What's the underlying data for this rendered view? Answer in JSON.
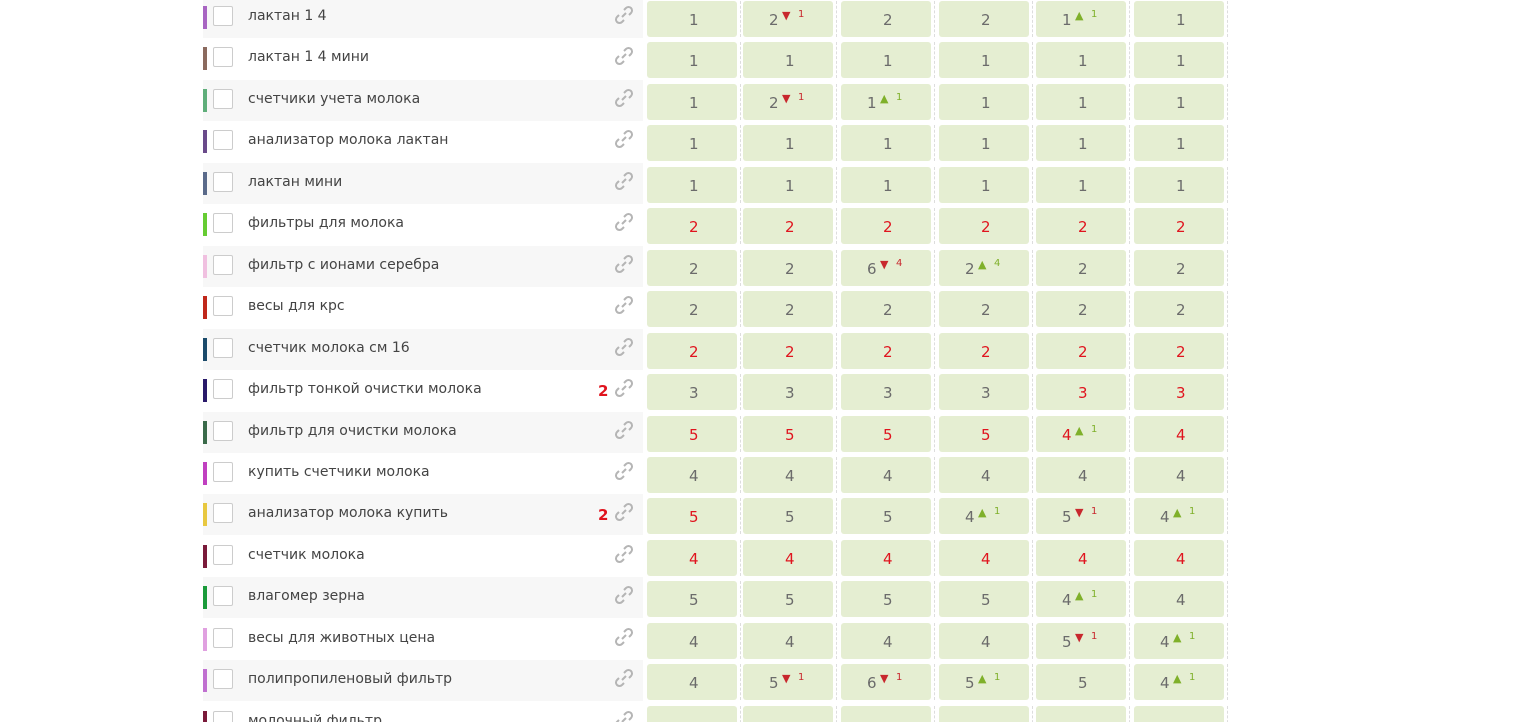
{
  "colors": {
    "normal": "#6b6b6b",
    "alert": "#e0141e",
    "up": "#7fb02a",
    "down": "#c8282e",
    "cell": "#e5eed2"
  },
  "rows": [
    {
      "label": "лактан 1 4",
      "color": "#a865c2",
      "cells": [
        {
          "value": 1
        },
        {
          "value": 2,
          "trend": "down",
          "delta": 1
        },
        {
          "value": 2
        },
        {
          "value": 2
        },
        {
          "value": 1,
          "trend": "up",
          "delta": 1
        },
        {
          "value": 1
        }
      ]
    },
    {
      "label": "лактан 1 4 мини",
      "color": "#8b6a5e",
      "cells": [
        {
          "value": 1
        },
        {
          "value": 1
        },
        {
          "value": 1
        },
        {
          "value": 1
        },
        {
          "value": 1
        },
        {
          "value": 1
        }
      ]
    },
    {
      "label": "счетчики учета молока",
      "color": "#5fae7a",
      "cells": [
        {
          "value": 1
        },
        {
          "value": 2,
          "trend": "down",
          "delta": 1
        },
        {
          "value": 1,
          "trend": "up",
          "delta": 1
        },
        {
          "value": 1
        },
        {
          "value": 1
        },
        {
          "value": 1
        }
      ]
    },
    {
      "label": "анализатор молока лактан",
      "color": "#6a4a8a",
      "cells": [
        {
          "value": 1
        },
        {
          "value": 1
        },
        {
          "value": 1
        },
        {
          "value": 1
        },
        {
          "value": 1
        },
        {
          "value": 1
        }
      ]
    },
    {
      "label": "лактан мини",
      "color": "#5a6a8a",
      "cells": [
        {
          "value": 1
        },
        {
          "value": 1
        },
        {
          "value": 1
        },
        {
          "value": 1
        },
        {
          "value": 1
        },
        {
          "value": 1
        }
      ]
    },
    {
      "label": "фильтры для молока",
      "color": "#66cc33",
      "cells": [
        {
          "value": 2,
          "alert": true
        },
        {
          "value": 2,
          "alert": true
        },
        {
          "value": 2,
          "alert": true
        },
        {
          "value": 2,
          "alert": true
        },
        {
          "value": 2,
          "alert": true
        },
        {
          "value": 2,
          "alert": true
        }
      ]
    },
    {
      "label": "фильтр с ионами серебра",
      "color": "#f0c0e0",
      "cells": [
        {
          "value": 2
        },
        {
          "value": 2
        },
        {
          "value": 6,
          "trend": "down",
          "delta": 4
        },
        {
          "value": 2,
          "trend": "up",
          "delta": 4
        },
        {
          "value": 2
        },
        {
          "value": 2
        }
      ]
    },
    {
      "label": "весы для крс",
      "color": "#c0281b",
      "cells": [
        {
          "value": 2
        },
        {
          "value": 2
        },
        {
          "value": 2
        },
        {
          "value": 2
        },
        {
          "value": 2
        },
        {
          "value": 2
        }
      ]
    },
    {
      "label": "счетчик молока см 16",
      "color": "#1a4a6a",
      "cells": [
        {
          "value": 2,
          "alert": true
        },
        {
          "value": 2,
          "alert": true
        },
        {
          "value": 2,
          "alert": true
        },
        {
          "value": 2,
          "alert": true
        },
        {
          "value": 2,
          "alert": true
        },
        {
          "value": 2,
          "alert": true
        }
      ]
    },
    {
      "label": "фильтр тонкой очистки молока",
      "color": "#2a1a6a",
      "badge": 2,
      "cells": [
        {
          "value": 3
        },
        {
          "value": 3
        },
        {
          "value": 3
        },
        {
          "value": 3
        },
        {
          "value": 3,
          "alert": true
        },
        {
          "value": 3,
          "alert": true
        }
      ]
    },
    {
      "label": "фильтр для очистки молока",
      "color": "#3a6a4a",
      "cells": [
        {
          "value": 5,
          "alert": true
        },
        {
          "value": 5,
          "alert": true
        },
        {
          "value": 5,
          "alert": true
        },
        {
          "value": 5,
          "alert": true
        },
        {
          "value": 4,
          "alert": true,
          "trend": "up",
          "delta": 1
        },
        {
          "value": 4,
          "alert": true
        }
      ]
    },
    {
      "label": "купить счетчики молока",
      "color": "#c040c0",
      "cells": [
        {
          "value": 4
        },
        {
          "value": 4
        },
        {
          "value": 4
        },
        {
          "value": 4
        },
        {
          "value": 4
        },
        {
          "value": 4
        }
      ]
    },
    {
      "label": "анализатор молока купить",
      "color": "#e8c840",
      "badge": 2,
      "cells": [
        {
          "value": 5,
          "alert": true
        },
        {
          "value": 5
        },
        {
          "value": 5
        },
        {
          "value": 4,
          "trend": "up",
          "delta": 1
        },
        {
          "value": 5,
          "trend": "down",
          "delta": 1
        },
        {
          "value": 4,
          "trend": "up",
          "delta": 1
        }
      ]
    },
    {
      "label": "счетчик молока",
      "color": "#7a1a3a",
      "cells": [
        {
          "value": 4,
          "alert": true
        },
        {
          "value": 4,
          "alert": true
        },
        {
          "value": 4,
          "alert": true
        },
        {
          "value": 4,
          "alert": true
        },
        {
          "value": 4,
          "alert": true
        },
        {
          "value": 4,
          "alert": true
        }
      ]
    },
    {
      "label": "влагомер зерна",
      "color": "#1a9a3a",
      "cells": [
        {
          "value": 5
        },
        {
          "value": 5
        },
        {
          "value": 5
        },
        {
          "value": 5
        },
        {
          "value": 4,
          "trend": "up",
          "delta": 1
        },
        {
          "value": 4
        }
      ]
    },
    {
      "label": "весы для животных цена",
      "color": "#e0a0e0",
      "cells": [
        {
          "value": 4
        },
        {
          "value": 4
        },
        {
          "value": 4
        },
        {
          "value": 4
        },
        {
          "value": 5,
          "trend": "down",
          "delta": 1
        },
        {
          "value": 4,
          "trend": "up",
          "delta": 1
        }
      ]
    },
    {
      "label": "полипропиленовый фильтр",
      "color": "#c070d0",
      "cells": [
        {
          "value": 4
        },
        {
          "value": 5,
          "trend": "down",
          "delta": 1
        },
        {
          "value": 6,
          "trend": "down",
          "delta": 1
        },
        {
          "value": 5,
          "trend": "up",
          "delta": 1
        },
        {
          "value": 5
        },
        {
          "value": 4,
          "trend": "up",
          "delta": 1
        }
      ]
    },
    {
      "label": "молочный фильтр",
      "color": "#7a1a3a",
      "cells": []
    }
  ]
}
